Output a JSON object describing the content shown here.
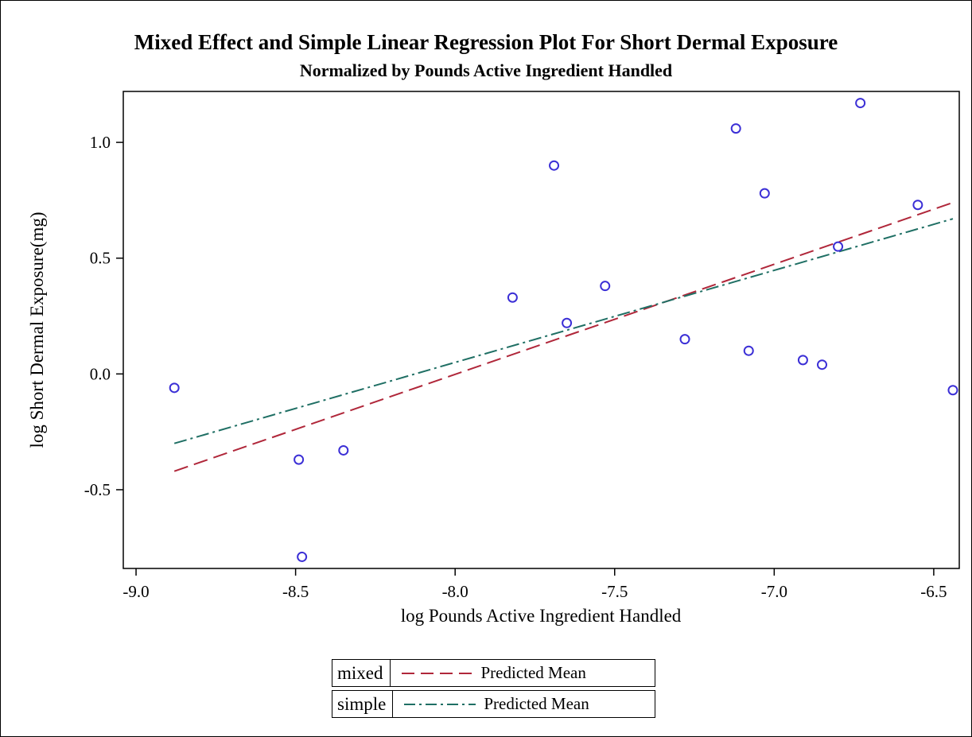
{
  "chart_data": {
    "type": "scatter",
    "title": "Mixed Effect and Simple Linear Regression Plot For Short Dermal Exposure",
    "subtitle": "Normalized by Pounds Active Ingredient Handled",
    "xlabel": "log Pounds Active Ingredient Handled",
    "ylabel": "log Short Dermal Exposure(mg)",
    "xlim": [
      -9.04,
      -6.42
    ],
    "ylim": [
      -0.84,
      1.22
    ],
    "xticks": [
      -9.0,
      -8.5,
      -8.0,
      -7.5,
      -7.0,
      -6.5
    ],
    "xtick_labels": [
      "-9.0",
      "-8.5",
      "-8.0",
      "-7.5",
      "-7.0",
      "-6.5"
    ],
    "yticks": [
      -0.5,
      0.0,
      0.5,
      1.0
    ],
    "ytick_labels": [
      "-0.5",
      "0.0",
      "0.5",
      "1.0"
    ],
    "grid": false,
    "points": {
      "x": [
        -8.88,
        -8.49,
        -8.48,
        -8.35,
        -7.82,
        -7.69,
        -7.65,
        -7.53,
        -7.28,
        -7.12,
        -7.08,
        -7.03,
        -6.91,
        -6.85,
        -6.8,
        -6.73,
        -6.55,
        -6.44
      ],
      "y": [
        -0.06,
        -0.37,
        -0.79,
        -0.33,
        0.33,
        0.9,
        0.22,
        0.38,
        0.15,
        1.06,
        0.1,
        0.78,
        0.06,
        0.04,
        0.55,
        1.17,
        0.73,
        -0.07
      ],
      "color": "#3b2fd6"
    },
    "series": [
      {
        "name": "Predicted Mean",
        "group": "mixed",
        "x": [
          -8.88,
          -6.44
        ],
        "y": [
          -0.42,
          0.74
        ],
        "color": "#b0273a",
        "dash": "long-dash"
      },
      {
        "name": "Predicted Mean",
        "group": "simple",
        "x": [
          -8.88,
          -6.44
        ],
        "y": [
          -0.3,
          0.67
        ],
        "color": "#1f6f64",
        "dash": "dash-dot"
      }
    ],
    "legend": [
      {
        "label": "mixed",
        "entry": "Predicted Mean"
      },
      {
        "label": "simple",
        "entry": "Predicted Mean"
      }
    ],
    "legend_placement": "bottom-center"
  }
}
